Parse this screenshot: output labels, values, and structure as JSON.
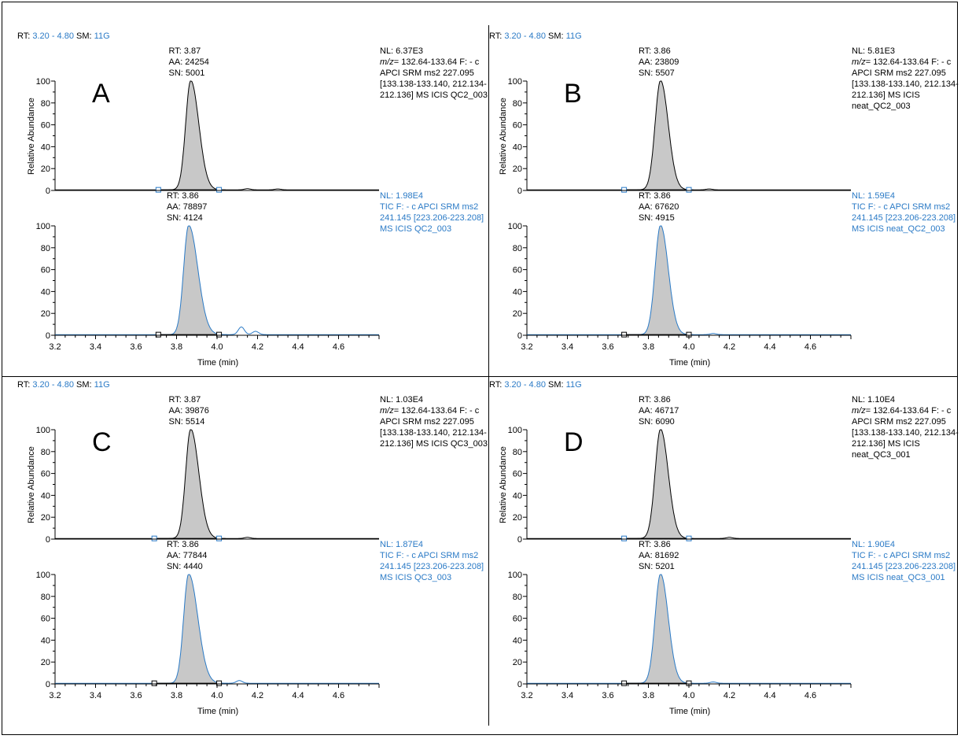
{
  "chart_data": [
    {
      "panel": "A",
      "header": {
        "rt_label": "RT:",
        "rt_range": "3.20 - 4.80",
        "sm_label": "SM:",
        "sm_value": "11G"
      },
      "ylabel": "Relative Abundance",
      "xlabel": "Time (min)",
      "xlim": [
        3.2,
        4.8
      ],
      "x_ticks": [
        "3.2",
        "3.4",
        "3.6",
        "3.8",
        "4.0",
        "4.2",
        "4.4",
        "4.6"
      ],
      "y_ticks": [
        "0",
        "20",
        "40",
        "60",
        "80",
        "100"
      ],
      "traces": [
        {
          "rt": "RT: 3.87",
          "aa": "AA: 24254",
          "sn": "SN: 5001",
          "peak_rt": 3.87,
          "sigma_left": 0.025,
          "sigma_right": 0.04,
          "baseline": [
            3.71,
            4.01
          ],
          "nl": "NL: 6.37E3",
          "mz_prefix": "m/z",
          "description": "= 132.64-133.64 F: - c APCI SRM ms2 227.095 [133.138-133.140, 212.134-212.136] MS ICIS QC2_003",
          "color": "#000000",
          "extra_bumps": [
            [
              4.15,
              0.01
            ],
            [
              4.3,
              0.008
            ]
          ]
        },
        {
          "rt": "RT: 3.86",
          "aa": "AA: 78897",
          "sn": "SN: 4124",
          "peak_rt": 3.86,
          "sigma_left": 0.025,
          "sigma_right": 0.045,
          "baseline": [
            3.71,
            4.01
          ],
          "nl": "NL: 1.98E4",
          "mz_prefix": "",
          "description": "TIC F: - c APCI SRM ms2 241.145 [223.206-223.208] MS ICIS QC2_003",
          "color": "#2a7ac6",
          "extra_bumps": [
            [
              4.12,
              0.07
            ],
            [
              4.19,
              0.03
            ]
          ]
        }
      ]
    },
    {
      "panel": "B",
      "header": {
        "rt_label": "RT:",
        "rt_range": "3.20 - 4.80",
        "sm_label": "SM:",
        "sm_value": "11G"
      },
      "ylabel": "Relative Abundance",
      "xlabel": "Time (min)",
      "xlim": [
        3.2,
        4.8
      ],
      "x_ticks": [
        "3.2",
        "3.4",
        "3.6",
        "3.8",
        "4.0",
        "4.2",
        "4.4",
        "4.6"
      ],
      "y_ticks": [
        "0",
        "20",
        "40",
        "60",
        "80",
        "100"
      ],
      "traces": [
        {
          "rt": "RT: 3.86",
          "aa": "AA: 23809",
          "sn": "SN: 5507",
          "peak_rt": 3.86,
          "sigma_left": 0.027,
          "sigma_right": 0.038,
          "baseline": [
            3.68,
            4.0
          ],
          "nl": "NL: 5.81E3",
          "mz_prefix": "m/z",
          "description": "= 132.64-133.64 F: - c APCI SRM ms2 227.095 [133.138-133.140, 212.134-212.136] MS ICIS neat_QC2_003",
          "color": "#000000",
          "extra_bumps": [
            [
              4.1,
              0.008
            ]
          ]
        },
        {
          "rt": "RT: 3.86",
          "aa": "AA: 67620",
          "sn": "SN: 4915",
          "peak_rt": 3.86,
          "sigma_left": 0.027,
          "sigma_right": 0.038,
          "baseline": [
            3.68,
            4.0
          ],
          "nl": "NL: 1.59E4",
          "mz_prefix": "",
          "description": "TIC F: - c APCI SRM ms2 241.145 [223.206-223.208] MS ICIS neat_QC2_003",
          "color": "#2a7ac6",
          "extra_bumps": [
            [
              4.12,
              0.01
            ]
          ]
        }
      ]
    },
    {
      "panel": "C",
      "header": {
        "rt_label": "RT:",
        "rt_range": "3.20 - 4.80",
        "sm_label": "SM:",
        "sm_value": "11G"
      },
      "ylabel": "Relative Abundance",
      "xlabel": "Time (min)",
      "xlim": [
        3.2,
        4.8
      ],
      "x_ticks": [
        "3.2",
        "3.4",
        "3.6",
        "3.8",
        "4.0",
        "4.2",
        "4.4",
        "4.6"
      ],
      "y_ticks": [
        "0",
        "20",
        "40",
        "60",
        "80",
        "100"
      ],
      "traces": [
        {
          "rt": "RT: 3.87",
          "aa": "AA: 39876",
          "sn": "SN: 5514",
          "peak_rt": 3.87,
          "sigma_left": 0.025,
          "sigma_right": 0.04,
          "baseline": [
            3.69,
            4.01
          ],
          "nl": "NL: 1.03E4",
          "mz_prefix": "m/z",
          "description": "= 132.64-133.64 F: - c APCI SRM ms2 227.095 [133.138-133.140, 212.134-212.136] MS ICIS QC3_003",
          "color": "#000000",
          "extra_bumps": [
            [
              4.15,
              0.01
            ]
          ]
        },
        {
          "rt": "RT: 3.86",
          "aa": "AA: 77844",
          "sn": "SN: 4440",
          "peak_rt": 3.86,
          "sigma_left": 0.025,
          "sigma_right": 0.045,
          "baseline": [
            3.69,
            4.01
          ],
          "nl": "NL: 1.87E4",
          "mz_prefix": "",
          "description": "TIC F: - c APCI SRM ms2 241.145 [223.206-223.208] MS ICIS QC3_003",
          "color": "#2a7ac6",
          "extra_bumps": [
            [
              4.11,
              0.025
            ]
          ]
        }
      ]
    },
    {
      "panel": "D",
      "header": {
        "rt_label": "RT:",
        "rt_range": "3.20 - 4.80",
        "sm_label": "SM:",
        "sm_value": "11G"
      },
      "ylabel": "Relative Abundance",
      "xlabel": "Time (min)",
      "xlim": [
        3.2,
        4.8
      ],
      "x_ticks": [
        "3.2",
        "3.4",
        "3.6",
        "3.8",
        "4.0",
        "4.2",
        "4.4",
        "4.6"
      ],
      "y_ticks": [
        "0",
        "20",
        "40",
        "60",
        "80",
        "100"
      ],
      "traces": [
        {
          "rt": "RT: 3.86",
          "aa": "AA: 46717",
          "sn": "SN: 6090",
          "peak_rt": 3.86,
          "sigma_left": 0.027,
          "sigma_right": 0.038,
          "baseline": [
            3.68,
            4.0
          ],
          "nl": "NL: 1.10E4",
          "mz_prefix": "m/z",
          "description": "= 132.64-133.64 F: - c APCI SRM ms2 227.095 [133.138-133.140, 212.134-212.136] MS ICIS neat_QC3_001",
          "color": "#000000",
          "extra_bumps": [
            [
              4.2,
              0.01
            ]
          ]
        },
        {
          "rt": "RT: 3.86",
          "aa": "AA: 81692",
          "sn": "SN: 5201",
          "peak_rt": 3.86,
          "sigma_left": 0.027,
          "sigma_right": 0.038,
          "baseline": [
            3.68,
            4.0
          ],
          "nl": "NL: 1.90E4",
          "mz_prefix": "",
          "description": "TIC F: - c APCI SRM ms2 241.145 [223.206-223.208] MS ICIS neat_QC3_001",
          "color": "#2a7ac6",
          "extra_bumps": [
            [
              4.12,
              0.012
            ]
          ]
        }
      ]
    }
  ]
}
